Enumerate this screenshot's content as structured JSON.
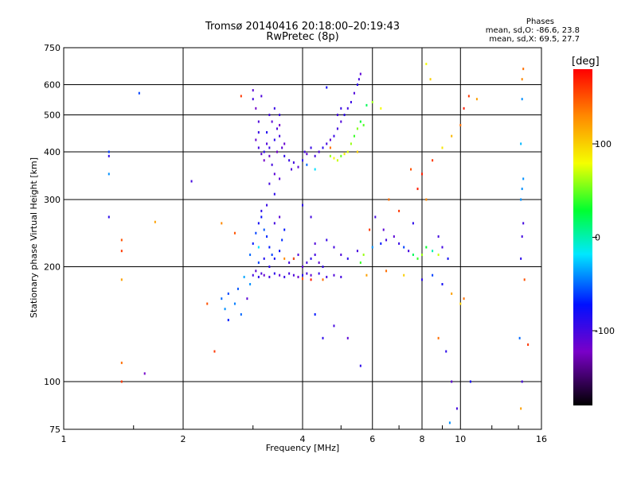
{
  "header": {
    "title_line1": "Tromsø 20140416 20:18:00–20:19:43",
    "title_line2": "RwPretec (8p)"
  },
  "phases": {
    "title": "Phases",
    "o_stats": "mean, sd,O: -86.6, 23.8",
    "x_stats": "mean, sd,X:  69.5, 27.7"
  },
  "colorbar": {
    "unit_label": "[deg]",
    "ticks": [
      "100",
      "0",
      "-100"
    ],
    "tick_values": [
      100,
      0,
      -100
    ],
    "range": [
      -180,
      180
    ]
  },
  "chart_data": {
    "type": "scatter",
    "xlabel": "Frequency [MHz]",
    "ylabel": "Stationary phase Virtual Height [km]",
    "x_scale": "log",
    "y_scale": "log",
    "xlim": [
      1,
      16
    ],
    "ylim": [
      75,
      750
    ],
    "x_ticks": [
      1,
      2,
      4,
      6,
      8,
      10,
      16
    ],
    "x_tick_labels": [
      "1",
      "2",
      "4",
      "6",
      "8",
      "10",
      "16"
    ],
    "y_ticks": [
      75,
      100,
      200,
      300,
      400,
      500,
      600,
      750
    ],
    "y_tick_labels": [
      "75",
      "100",
      "200",
      "300",
      "400",
      "500",
      "600",
      "750"
    ],
    "grid": true,
    "color_by": "phase_deg",
    "points": [
      [
        3.0,
        580,
        -110
      ],
      [
        3.0,
        550,
        -100
      ],
      [
        3.05,
        520,
        -120
      ],
      [
        3.1,
        480,
        -105
      ],
      [
        3.1,
        450,
        -95
      ],
      [
        3.05,
        430,
        -115
      ],
      [
        3.1,
        410,
        -100
      ],
      [
        3.15,
        395,
        -110
      ],
      [
        3.2,
        400,
        -90
      ],
      [
        3.2,
        380,
        -120
      ],
      [
        3.25,
        420,
        -105
      ],
      [
        3.3,
        410,
        -95
      ],
      [
        3.3,
        390,
        -115
      ],
      [
        3.35,
        370,
        -100
      ],
      [
        3.4,
        350,
        -110
      ],
      [
        3.4,
        430,
        -90
      ],
      [
        3.45,
        460,
        -105
      ],
      [
        3.5,
        500,
        -95
      ],
      [
        3.5,
        470,
        -120
      ],
      [
        3.5,
        440,
        -100
      ],
      [
        3.55,
        410,
        -110
      ],
      [
        3.6,
        390,
        -90
      ],
      [
        3.6,
        420,
        -115
      ],
      [
        3.3,
        500,
        -100
      ],
      [
        3.35,
        480,
        -110
      ],
      [
        3.4,
        520,
        -95
      ],
      [
        3.15,
        560,
        -105
      ],
      [
        3.25,
        450,
        -85
      ],
      [
        3.45,
        400,
        -120
      ],
      [
        3.3,
        330,
        -100
      ],
      [
        3.4,
        310,
        -90
      ],
      [
        3.5,
        340,
        -110
      ],
      [
        3.7,
        380,
        -95
      ],
      [
        3.75,
        360,
        -105
      ],
      [
        3.8,
        375,
        -100
      ],
      [
        3.9,
        365,
        -110
      ],
      [
        4.0,
        380,
        -90
      ],
      [
        4.05,
        400,
        -100
      ],
      [
        4.1,
        395,
        -110
      ],
      [
        4.2,
        410,
        -95
      ],
      [
        4.3,
        390,
        -100
      ],
      [
        4.4,
        400,
        -105
      ],
      [
        4.5,
        410,
        -90
      ],
      [
        4.6,
        420,
        -100
      ],
      [
        4.7,
        430,
        -110
      ],
      [
        4.8,
        440,
        -95
      ],
      [
        4.9,
        460,
        -100
      ],
      [
        5.0,
        480,
        -105
      ],
      [
        5.1,
        500,
        -90
      ],
      [
        5.2,
        520,
        -100
      ],
      [
        5.3,
        540,
        -95
      ],
      [
        5.4,
        570,
        -105
      ],
      [
        5.5,
        600,
        -90
      ],
      [
        5.55,
        620,
        -100
      ],
      [
        5.6,
        640,
        -110
      ],
      [
        5.0,
        520,
        -95
      ],
      [
        4.9,
        500,
        -100
      ],
      [
        4.6,
        590,
        -80
      ],
      [
        4.3,
        360,
        -20
      ],
      [
        4.1,
        370,
        -50
      ],
      [
        4.7,
        390,
        60
      ],
      [
        4.8,
        385,
        80
      ],
      [
        4.9,
        380,
        70
      ],
      [
        5.0,
        390,
        50
      ],
      [
        5.1,
        395,
        85
      ],
      [
        5.2,
        400,
        75
      ],
      [
        5.3,
        420,
        60
      ],
      [
        5.4,
        440,
        40
      ],
      [
        5.5,
        460,
        55
      ],
      [
        5.6,
        480,
        30
      ],
      [
        5.7,
        470,
        45
      ],
      [
        5.8,
        530,
        20
      ],
      [
        6.0,
        540,
        60
      ],
      [
        6.3,
        520,
        80
      ],
      [
        5.5,
        400,
        100
      ],
      [
        4.7,
        410,
        140
      ],
      [
        2.5,
        165,
        -50
      ],
      [
        2.55,
        155,
        -40
      ],
      [
        2.6,
        170,
        -60
      ],
      [
        2.7,
        160,
        -45
      ],
      [
        2.75,
        175,
        -55
      ],
      [
        2.8,
        150,
        -50
      ],
      [
        2.6,
        145,
        -70
      ],
      [
        2.9,
        165,
        -110
      ],
      [
        2.95,
        180,
        -40
      ],
      [
        2.85,
        188,
        -35
      ],
      [
        3.0,
        190,
        -100
      ],
      [
        3.05,
        195,
        -110
      ],
      [
        3.1,
        188,
        -90
      ],
      [
        3.15,
        192,
        -105
      ],
      [
        3.2,
        190,
        -115
      ],
      [
        3.3,
        188,
        -100
      ],
      [
        3.4,
        192,
        -90
      ],
      [
        3.5,
        190,
        -110
      ],
      [
        3.6,
        188,
        -95
      ],
      [
        3.7,
        192,
        -100
      ],
      [
        3.8,
        190,
        -105
      ],
      [
        3.9,
        188,
        -115
      ],
      [
        4.0,
        190,
        -90
      ],
      [
        4.1,
        192,
        -100
      ],
      [
        4.2,
        190,
        -110
      ],
      [
        4.4,
        192,
        -95
      ],
      [
        4.6,
        188,
        -100
      ],
      [
        4.8,
        190,
        -105
      ],
      [
        5.0,
        188,
        -100
      ],
      [
        4.5,
        185,
        140
      ],
      [
        4.2,
        185,
        170
      ],
      [
        4.0,
        186,
        150
      ],
      [
        3.0,
        230,
        -70
      ],
      [
        3.05,
        245,
        -60
      ],
      [
        3.1,
        260,
        -80
      ],
      [
        3.15,
        270,
        -75
      ],
      [
        3.2,
        250,
        -55
      ],
      [
        3.25,
        240,
        -65
      ],
      [
        3.3,
        225,
        -70
      ],
      [
        3.35,
        215,
        -60
      ],
      [
        3.4,
        210,
        -80
      ],
      [
        3.5,
        220,
        -75
      ],
      [
        3.55,
        235,
        -65
      ],
      [
        3.6,
        250,
        -70
      ],
      [
        3.15,
        280,
        -90
      ],
      [
        3.25,
        290,
        -95
      ],
      [
        3.5,
        270,
        -110
      ],
      [
        3.4,
        260,
        -100
      ],
      [
        3.2,
        210,
        -85
      ],
      [
        3.1,
        205,
        -60
      ],
      [
        2.95,
        215,
        -50
      ],
      [
        3.3,
        200,
        -90
      ],
      [
        3.7,
        205,
        -100
      ],
      [
        3.8,
        210,
        -95
      ],
      [
        3.9,
        215,
        -105
      ],
      [
        4.0,
        200,
        -110
      ],
      [
        4.1,
        205,
        -100
      ],
      [
        4.2,
        210,
        -90
      ],
      [
        4.3,
        215,
        -100
      ],
      [
        4.4,
        205,
        -110
      ],
      [
        4.5,
        200,
        -95
      ],
      [
        4.2,
        270,
        -100
      ],
      [
        4.0,
        290,
        -90
      ],
      [
        4.3,
        230,
        -105
      ],
      [
        4.6,
        235,
        -95
      ],
      [
        4.8,
        225,
        -100
      ],
      [
        5.0,
        215,
        -105
      ],
      [
        5.2,
        210,
        -90
      ],
      [
        5.5,
        220,
        -100
      ],
      [
        5.6,
        205,
        40
      ],
      [
        5.7,
        215,
        60
      ],
      [
        6.0,
        225,
        -40
      ],
      [
        6.3,
        230,
        -70
      ],
      [
        6.5,
        235,
        -100
      ],
      [
        6.8,
        240,
        -110
      ],
      [
        7.0,
        230,
        -95
      ],
      [
        7.2,
        225,
        -60
      ],
      [
        7.4,
        220,
        -100
      ],
      [
        7.6,
        215,
        20
      ],
      [
        7.8,
        210,
        40
      ],
      [
        8.0,
        215,
        60
      ],
      [
        8.2,
        225,
        30
      ],
      [
        8.5,
        220,
        0
      ],
      [
        8.8,
        215,
        70
      ],
      [
        9.0,
        225,
        -100
      ],
      [
        9.3,
        210,
        -80
      ],
      [
        7.6,
        260,
        -90
      ],
      [
        8.8,
        240,
        -100
      ],
      [
        6.1,
        270,
        -100
      ],
      [
        6.4,
        250,
        -110
      ],
      [
        6.6,
        300,
        140
      ],
      [
        7.0,
        280,
        160
      ],
      [
        7.8,
        320,
        170
      ],
      [
        8.2,
        300,
        130
      ],
      [
        7.5,
        360,
        150
      ],
      [
        8.0,
        350,
        170
      ],
      [
        8.5,
        380,
        160
      ],
      [
        9.0,
        410,
        90
      ],
      [
        9.5,
        440,
        110
      ],
      [
        10.0,
        470,
        140
      ],
      [
        10.2,
        520,
        170
      ],
      [
        10.5,
        560,
        160
      ],
      [
        11.0,
        550,
        120
      ],
      [
        8.4,
        620,
        100
      ],
      [
        8.2,
        680,
        80
      ],
      [
        5.8,
        190,
        120
      ],
      [
        6.5,
        195,
        140
      ],
      [
        7.2,
        190,
        100
      ],
      [
        8.0,
        185,
        -90
      ],
      [
        8.5,
        190,
        -60
      ],
      [
        9.0,
        180,
        -80
      ],
      [
        9.5,
        170,
        120
      ],
      [
        10.0,
        160,
        100
      ],
      [
        8.8,
        130,
        140
      ],
      [
        9.2,
        120,
        -90
      ],
      [
        9.5,
        100,
        -110
      ],
      [
        9.8,
        85,
        -100
      ],
      [
        9.4,
        78,
        -40
      ],
      [
        10.6,
        100,
        -80
      ],
      [
        10.2,
        165,
        140
      ],
      [
        14.3,
        620,
        130
      ],
      [
        14.3,
        550,
        -40
      ],
      [
        14.2,
        420,
        -30
      ],
      [
        14.4,
        340,
        -40
      ],
      [
        14.3,
        320,
        -40
      ],
      [
        14.2,
        300,
        -40
      ],
      [
        14.4,
        260,
        -100
      ],
      [
        14.3,
        240,
        -100
      ],
      [
        14.2,
        210,
        -90
      ],
      [
        14.5,
        185,
        150
      ],
      [
        14.1,
        130,
        -50
      ],
      [
        14.8,
        125,
        160
      ],
      [
        14.3,
        100,
        -100
      ],
      [
        14.2,
        85,
        120
      ],
      [
        14.4,
        660,
        140
      ],
      [
        1.3,
        400,
        -60
      ],
      [
        1.3,
        390,
        -90
      ],
      [
        1.3,
        350,
        -40
      ],
      [
        1.3,
        270,
        -90
      ],
      [
        1.4,
        235,
        150
      ],
      [
        1.4,
        220,
        160
      ],
      [
        1.4,
        185,
        120
      ],
      [
        1.4,
        112,
        140
      ],
      [
        1.4,
        100,
        160
      ],
      [
        1.6,
        105,
        -120
      ],
      [
        1.7,
        262,
        120
      ],
      [
        1.55,
        570,
        -60
      ],
      [
        2.1,
        335,
        -100
      ],
      [
        2.3,
        160,
        150
      ],
      [
        2.4,
        120,
        160
      ],
      [
        2.5,
        260,
        130
      ],
      [
        2.7,
        245,
        150
      ],
      [
        2.8,
        560,
        160
      ],
      [
        3.1,
        225,
        -20
      ],
      [
        3.6,
        210,
        130
      ],
      [
        4.3,
        150,
        -70
      ],
      [
        4.5,
        130,
        -90
      ],
      [
        4.8,
        140,
        -100
      ],
      [
        5.2,
        130,
        -110
      ],
      [
        5.6,
        110,
        -90
      ],
      [
        3.8,
        210,
        150
      ],
      [
        5.9,
        250,
        160
      ]
    ]
  }
}
